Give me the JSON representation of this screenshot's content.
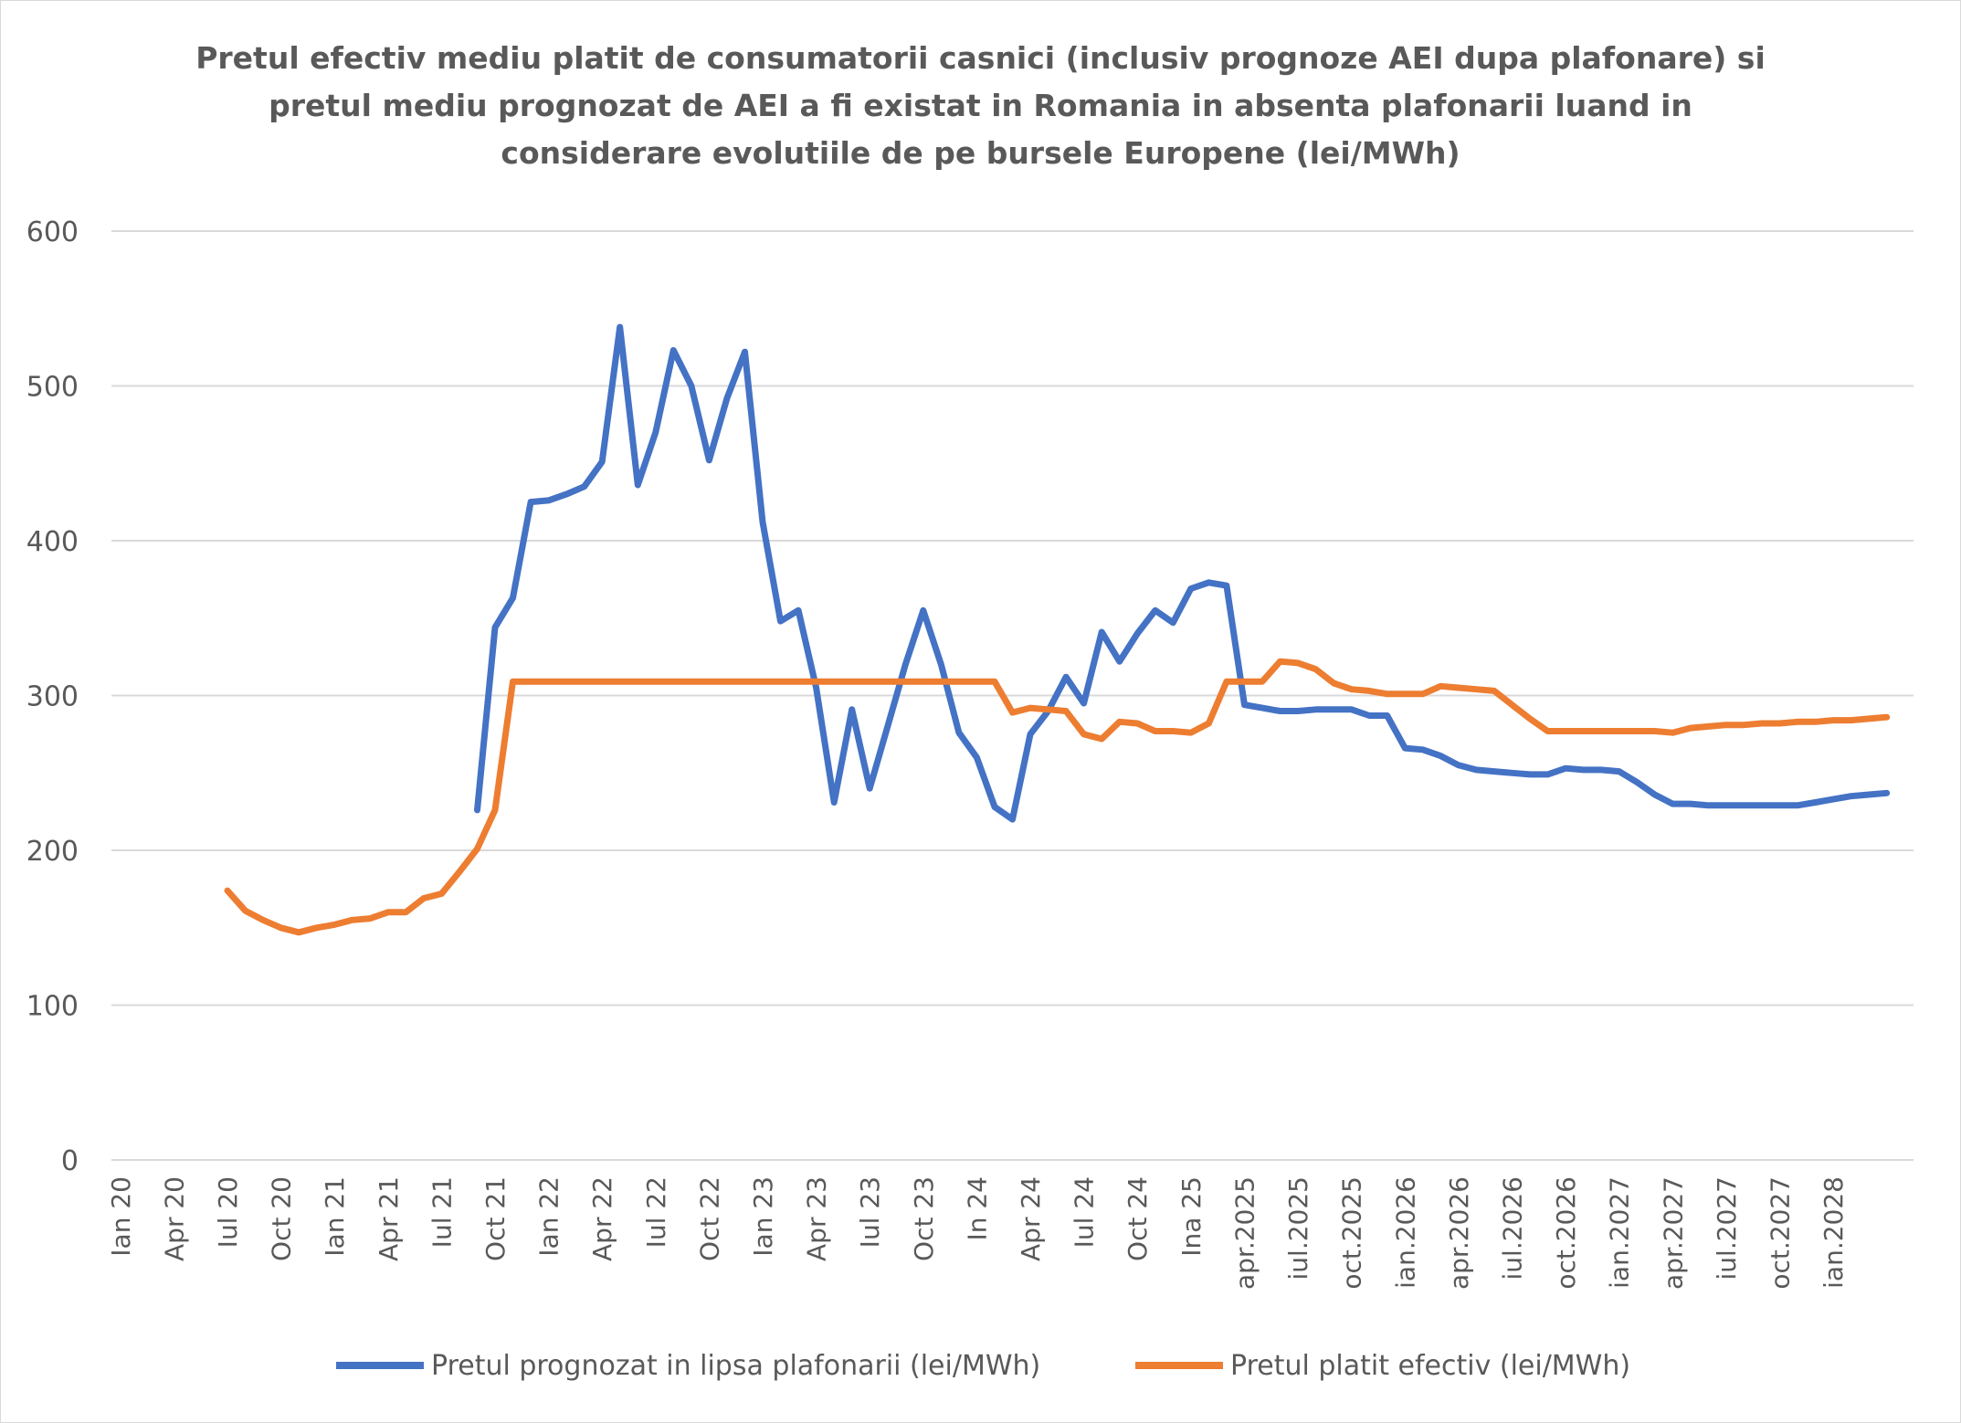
{
  "chart_data": {
    "type": "line",
    "title_lines": [
      "Pretul efectiv mediu platit de consumatorii casnici (inclusiv prognoze AEI dupa plafonare) si",
      "pretul mediu prognozat de AEI a fi existat in Romania in absenta plafonarii luand in",
      "considerare evolutiile de pe bursele Europene (lei/MWh)"
    ],
    "xlabel": "",
    "ylabel": "",
    "ylim": [
      0,
      600
    ],
    "yticks": [
      0,
      100,
      200,
      300,
      400,
      500,
      600
    ],
    "grid": true,
    "legend_position": "bottom",
    "x_tick_labels": [
      "Ian 20",
      "Apr 20",
      "Iul 20",
      "Oct 20",
      "Ian 21",
      "Apr 21",
      "Iul 21",
      "Oct 21",
      "Ian 22",
      "Apr 22",
      "Iul 22",
      "Oct 22",
      "Ian 23",
      "Apr 23",
      "Iul 23",
      "Oct 23",
      "In 24",
      "Apr 24",
      "Iul 24",
      "Oct 24",
      "Ina 25",
      "apr.2025",
      "iul.2025",
      "oct.2025",
      "ian.2026",
      "apr.2026",
      "iul.2026",
      "oct.2026",
      "ian.2027",
      "apr.2027",
      "iul.2027",
      "oct.2027",
      "ian.2028"
    ],
    "series": [
      {
        "name": "Pretul prognozat in lipsa plafonarii (lei/MWh)",
        "color": "#4472c4",
        "start_index": 20,
        "values": [
          226,
          344,
          363,
          425,
          426,
          430,
          435,
          451,
          538,
          436,
          470,
          523,
          500,
          452,
          492,
          522,
          412,
          348,
          355,
          305,
          231,
          291,
          240,
          280,
          320,
          355,
          320,
          276,
          260,
          228,
          220,
          275,
          290,
          312,
          295,
          341,
          322,
          340,
          355,
          347,
          369,
          373,
          371,
          294,
          292,
          290,
          290,
          291,
          291,
          291,
          287,
          287,
          266,
          265,
          261,
          255,
          252,
          251,
          250,
          249,
          249,
          253,
          252,
          252,
          251,
          244,
          236,
          230,
          230,
          229,
          229,
          229,
          229,
          229,
          229,
          231,
          233,
          235,
          236,
          237
        ]
      },
      {
        "name": "Pretul platit efectiv (lei/MWh)",
        "color": "#ed7d31",
        "start_index": 6,
        "values": [
          174,
          161,
          155,
          150,
          147,
          150,
          152,
          155,
          156,
          160,
          160,
          169,
          172,
          186,
          201,
          226,
          309,
          309,
          309,
          309,
          309,
          309,
          309,
          309,
          309,
          309,
          309,
          309,
          309,
          309,
          309,
          309,
          309,
          309,
          309,
          309,
          309,
          309,
          309,
          309,
          309,
          309,
          309,
          309,
          289,
          292,
          291,
          290,
          275,
          272,
          283,
          282,
          277,
          277,
          276,
          282,
          309,
          309,
          309,
          322,
          321,
          317,
          308,
          304,
          303,
          301,
          301,
          301,
          306,
          305,
          304,
          303,
          294,
          285,
          277,
          277,
          277,
          277,
          277,
          277,
          277,
          276,
          279,
          280,
          281,
          281,
          282,
          282,
          283,
          283,
          284,
          284,
          285,
          286
        ]
      }
    ]
  }
}
